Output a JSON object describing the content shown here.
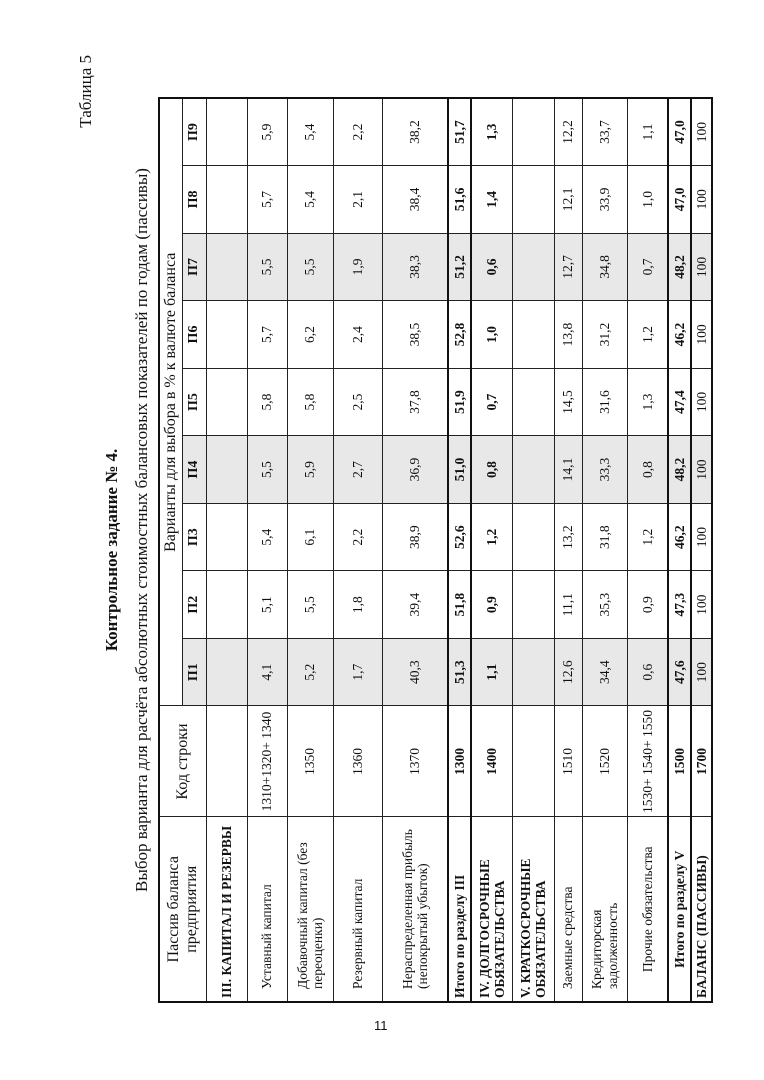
{
  "table_label": "Таблица 5",
  "title": "Контрольное задание № 4.",
  "subtitle": "Выбор варианта  для расчёта абсолютных стоимостных балансовых показателей по годам (пассивы)",
  "page_number": "11",
  "shade_color": "#e8e8e8",
  "header": {
    "col_name": "Пассив баланса предприятия",
    "col_code": "Код строки",
    "col_variants": "Варианты для выбора в % к валюте баланса",
    "variants": [
      "П1",
      "П2",
      "П3",
      "П4",
      "П5",
      "П6",
      "П7",
      "П8",
      "П9"
    ],
    "shaded_variants": [
      0,
      3,
      6
    ]
  },
  "rows": [
    {
      "name": "III. КАПИТАЛ И РЕЗЕРВЫ",
      "code": "",
      "values": [
        "",
        "",
        "",
        "",
        "",
        "",
        "",
        "",
        ""
      ],
      "style": "section"
    },
    {
      "name": "Уставный капитал",
      "code": "1310+1320+ 1340",
      "values": [
        "4,1",
        "5,1",
        "5,4",
        "5,5",
        "5,8",
        "5,7",
        "5,5",
        "5,7",
        "5,9"
      ],
      "style": "item"
    },
    {
      "name": "Добавочный капитал (без переоценки)",
      "code": "1350",
      "values": [
        "5,2",
        "5,5",
        "6,1",
        "5,9",
        "5,8",
        "6,2",
        "5,5",
        "5,4",
        "5,4"
      ],
      "style": "item-left"
    },
    {
      "name": "Резервный капитал",
      "code": "1360",
      "values": [
        "1,7",
        "1,8",
        "2,2",
        "2,7",
        "2,5",
        "2,4",
        "1,9",
        "2,1",
        "2,2"
      ],
      "style": "item"
    },
    {
      "name": "Нераспределенная прибыль (непокрытый убыток)",
      "code": "1370",
      "values": [
        "40,3",
        "39,4",
        "38,9",
        "36,9",
        "37,8",
        "38,5",
        "38,3",
        "38,4",
        "38,2"
      ],
      "style": "item-left"
    },
    {
      "name": "Итого по разделу III",
      "code": "1300",
      "values": [
        "51,3",
        "51,8",
        "52,6",
        "51,0",
        "51,9",
        "52,8",
        "51,2",
        "51,6",
        "51,7"
      ],
      "style": "total"
    },
    {
      "name": "IV. ДОЛГОСРОЧНЫЕ ОБЯЗАТЕЛЬСТВА",
      "code": "1400",
      "values": [
        "1,1",
        "0,9",
        "1,2",
        "0,8",
        "0,7",
        "1,0",
        "0,6",
        "1,4",
        "1,3"
      ],
      "style": "section"
    },
    {
      "name": "V. КРАТКОСРОЧНЫЕ ОБЯЗАТЕЛЬСТВА",
      "code": "",
      "values": [
        "",
        "",
        "",
        "",
        "",
        "",
        "",
        "",
        ""
      ],
      "style": "section"
    },
    {
      "name": "Заемные средства",
      "code": "1510",
      "values": [
        "12,6",
        "11,1",
        "13,2",
        "14,1",
        "14,5",
        "13,8",
        "12,7",
        "12,1",
        "12,2"
      ],
      "style": "item"
    },
    {
      "name": "Кредиторская задолженность",
      "code": "1520",
      "values": [
        "34,4",
        "35,3",
        "31,8",
        "33,3",
        "31,6",
        "31,2",
        "34,8",
        "33,9",
        "33,7"
      ],
      "style": "item"
    },
    {
      "name": "Прочие обязательства",
      "code": "1530+ 1540+ 1550",
      "values": [
        "0,6",
        "0,9",
        "1,2",
        "0,8",
        "1,3",
        "1,2",
        "0,7",
        "1,0",
        "1,1"
      ],
      "style": "item-center"
    },
    {
      "name": "Итого по разделу V",
      "code": "1500",
      "values": [
        "47,6",
        "47,3",
        "46,2",
        "48,2",
        "47,4",
        "46,2",
        "48,2",
        "47,0",
        "47,0"
      ],
      "style": "total-center"
    },
    {
      "name": "БАЛАНС (ПАССИВЫ)",
      "code": "1700",
      "values": [
        "100",
        "100",
        "100",
        "100",
        "100",
        "100",
        "100",
        "100",
        "100"
      ],
      "style": "balance"
    }
  ]
}
